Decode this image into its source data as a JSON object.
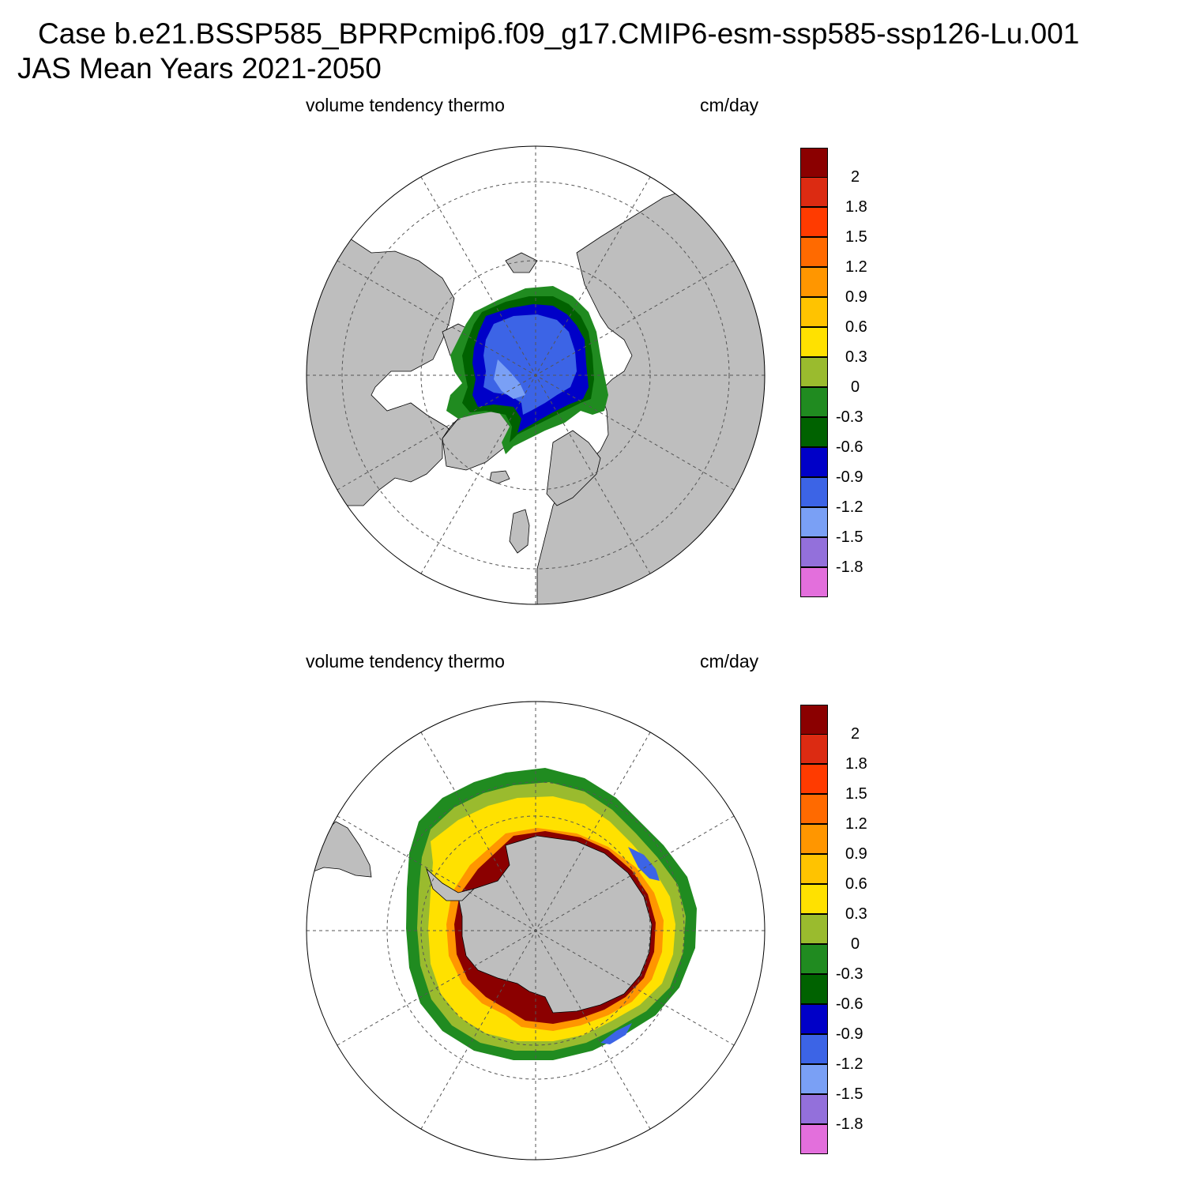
{
  "header": {
    "case_title": "Case b.e21.BSSP585_BPRPcmip6.f09_g17.CMIP6-esm-ssp585-ssp126-Lu.001",
    "period_title": "JAS Mean   Years 2021-2050"
  },
  "colorbar": {
    "levels": [
      "2",
      "1.8",
      "1.5",
      "1.2",
      "0.9",
      "0.6",
      "0.3",
      "0",
      "-0.3",
      "-0.6",
      "-0.9",
      "-1.2",
      "-1.5",
      "-1.8"
    ],
    "colors": [
      "#8b0000",
      "#dc2b12",
      "#ff3b00",
      "#ff6a00",
      "#ff9600",
      "#ffc300",
      "#ffe100",
      "#9abb2e",
      "#208b20",
      "#006200",
      "#0000c8",
      "#3c64e6",
      "#7aa0f5",
      "#9370db",
      "#e36fdc"
    ]
  },
  "colors": {
    "land": "#bebebe",
    "no_ice": "#ffffff",
    "grid": "#555555"
  },
  "panels": [
    {
      "id": "arctic",
      "variable_label": "volume tendency thermo",
      "units_label": "cm/day"
    },
    {
      "id": "antarctic",
      "variable_label": "volume tendency thermo",
      "units_label": "cm/day"
    }
  ]
}
